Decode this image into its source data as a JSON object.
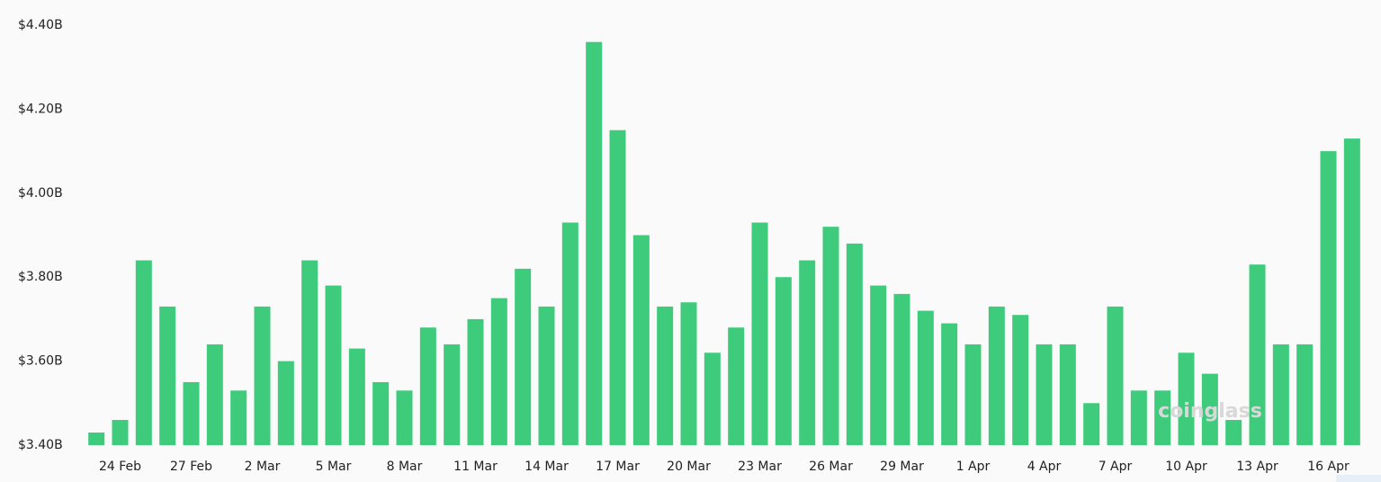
{
  "chart_data": {
    "type": "bar",
    "color": "#3ecb7c",
    "watermark": "coinglass",
    "categories": [
      null,
      "24 Feb",
      null,
      null,
      "27 Feb",
      null,
      null,
      "2 Mar",
      null,
      null,
      "5 Mar",
      null,
      null,
      "8 Mar",
      null,
      null,
      "11 Mar",
      null,
      null,
      "14 Mar",
      null,
      null,
      "17 Mar",
      null,
      null,
      "20 Mar",
      null,
      null,
      "23 Mar",
      null,
      null,
      "26 Mar",
      null,
      null,
      "29 Mar",
      null,
      null,
      "1 Apr",
      null,
      null,
      "4 Apr",
      null,
      null,
      "7 Apr",
      null,
      null,
      "10 Apr",
      null,
      null,
      "13 Apr",
      null,
      null,
      "16 Apr",
      null
    ],
    "values": [
      3.43,
      3.46,
      3.84,
      3.73,
      3.55,
      3.64,
      3.53,
      3.73,
      3.6,
      3.84,
      3.78,
      3.63,
      3.55,
      3.53,
      3.68,
      3.64,
      3.7,
      3.75,
      3.82,
      3.73,
      3.93,
      4.36,
      4.15,
      3.9,
      3.73,
      3.74,
      3.62,
      3.68,
      3.93,
      3.8,
      3.84,
      3.92,
      3.88,
      3.78,
      3.76,
      3.72,
      3.69,
      3.64,
      3.73,
      3.71,
      3.64,
      3.64,
      3.5,
      3.73,
      3.53,
      3.53,
      3.62,
      3.57,
      3.46,
      3.83,
      3.64,
      3.64,
      4.1,
      4.13
    ],
    "ylim": [
      3.4,
      4.4
    ],
    "yticks": [
      {
        "value": 3.4,
        "label": "$3.40B"
      },
      {
        "value": 3.6,
        "label": "$3.60B"
      },
      {
        "value": 3.8,
        "label": "$3.80B"
      },
      {
        "value": 4.0,
        "label": "$4.00B"
      },
      {
        "value": 4.2,
        "label": "$4.20B"
      },
      {
        "value": 4.4,
        "label": "$4.40B"
      }
    ]
  }
}
